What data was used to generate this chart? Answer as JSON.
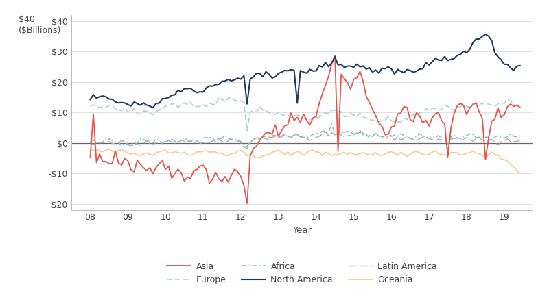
{
  "xlabel": "Year",
  "ylim": [
    -22,
    42
  ],
  "yticks": [
    -20,
    -10,
    0,
    10,
    20,
    30,
    40
  ],
  "ytick_labels": [
    "-$20",
    "-$10",
    "$0",
    "$10",
    "$20",
    "$30",
    "$40"
  ],
  "xticks": [
    2008,
    2009,
    2010,
    2011,
    2012,
    2013,
    2014,
    2015,
    2016,
    2017,
    2018,
    2019
  ],
  "xtick_labels": [
    "08",
    "09",
    "10",
    "11",
    "12",
    "13",
    "14",
    "15",
    "16",
    "17",
    "18",
    "19"
  ],
  "xlim": [
    2007.5,
    2019.75
  ],
  "colors": {
    "Asia": "#e8534a",
    "North America": "#1b3a5c",
    "Europe": "#a8d5cb",
    "Latin America": "#aaaaaa",
    "Africa": "#82bcd6",
    "Oceania": "#f5c98a"
  },
  "background_color": "#ffffff",
  "grid_color": "#d5d5d5",
  "zero_line_color": "#666666",
  "spine_color": "#bbbbbb"
}
